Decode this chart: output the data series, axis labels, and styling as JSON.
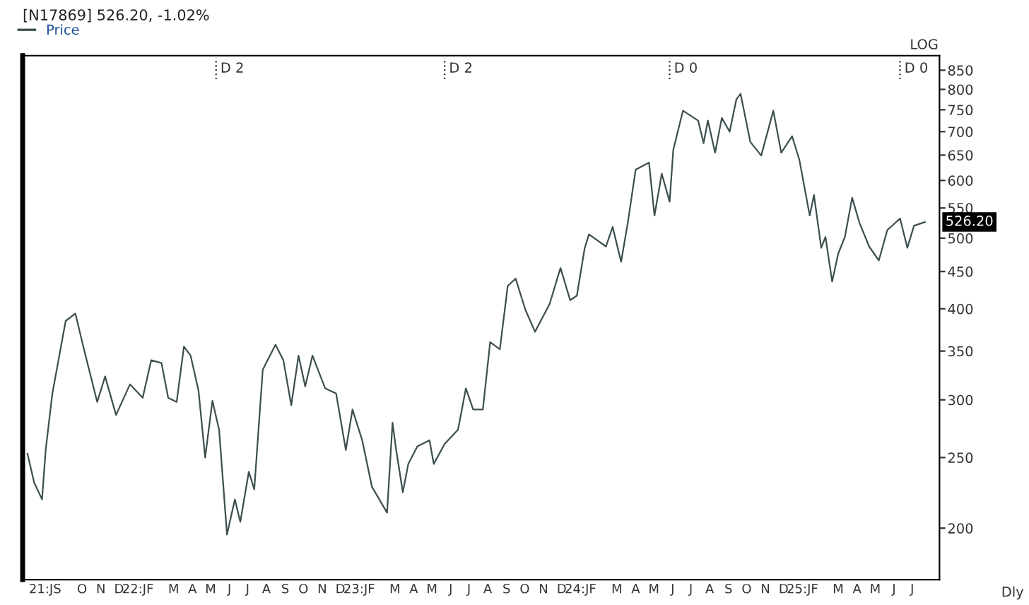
{
  "chart_data": {
    "type": "line",
    "title": "[N17869] 526.20, -1.02%",
    "log": true,
    "grid": false,
    "legend": "top left",
    "marker": "none",
    "line_style": "solid",
    "ylim": [
      170,
      890
    ],
    "yticks": [
      200,
      250,
      300,
      350,
      400,
      450,
      500,
      550,
      600,
      650,
      700,
      750,
      800,
      850
    ],
    "xlim": [
      "2021-06-25",
      "2025-08-15"
    ],
    "xticks": [
      {
        "value": "2021-08-01",
        "label": "21:JS"
      },
      {
        "value": "2021-10-01",
        "label": "O"
      },
      {
        "value": "2021-11-01",
        "label": "N"
      },
      {
        "value": "2021-12-01",
        "label": "D"
      },
      {
        "value": "2022-01-01",
        "label": "22:JF"
      },
      {
        "value": "2022-03-01",
        "label": "M"
      },
      {
        "value": "2022-04-01",
        "label": "A"
      },
      {
        "value": "2022-05-01",
        "label": "M"
      },
      {
        "value": "2022-06-01",
        "label": "J"
      },
      {
        "value": "2022-07-01",
        "label": "J"
      },
      {
        "value": "2022-08-01",
        "label": "A"
      },
      {
        "value": "2022-09-01",
        "label": "S"
      },
      {
        "value": "2022-10-01",
        "label": "O"
      },
      {
        "value": "2022-11-01",
        "label": "N"
      },
      {
        "value": "2022-12-01",
        "label": "D"
      },
      {
        "value": "2023-01-01",
        "label": "23:JF"
      },
      {
        "value": "2023-03-01",
        "label": "M"
      },
      {
        "value": "2023-04-01",
        "label": "A"
      },
      {
        "value": "2023-05-01",
        "label": "M"
      },
      {
        "value": "2023-06-01",
        "label": "J"
      },
      {
        "value": "2023-07-01",
        "label": "J"
      },
      {
        "value": "2023-08-01",
        "label": "A"
      },
      {
        "value": "2023-09-01",
        "label": "S"
      },
      {
        "value": "2023-10-01",
        "label": "O"
      },
      {
        "value": "2023-11-01",
        "label": "N"
      },
      {
        "value": "2023-12-01",
        "label": "D"
      },
      {
        "value": "2024-01-01",
        "label": "24:JF"
      },
      {
        "value": "2024-03-01",
        "label": "M"
      },
      {
        "value": "2024-04-01",
        "label": "A"
      },
      {
        "value": "2024-05-01",
        "label": "M"
      },
      {
        "value": "2024-06-01",
        "label": "J"
      },
      {
        "value": "2024-07-01",
        "label": "J"
      },
      {
        "value": "2024-08-01",
        "label": "A"
      },
      {
        "value": "2024-09-01",
        "label": "S"
      },
      {
        "value": "2024-10-01",
        "label": "O"
      },
      {
        "value": "2024-11-01",
        "label": "N"
      },
      {
        "value": "2024-12-01",
        "label": "D"
      },
      {
        "value": "2025-01-01",
        "label": "25:JF"
      },
      {
        "value": "2025-03-01",
        "label": "M"
      },
      {
        "value": "2025-04-01",
        "label": "A"
      },
      {
        "value": "2025-05-01",
        "label": "M"
      },
      {
        "value": "2025-06-01",
        "label": "J"
      },
      {
        "value": "2025-07-01",
        "label": "J"
      }
    ],
    "ref_lines": [
      {
        "axis": "x",
        "value": "2022-05-10",
        "label": "D 2",
        "line_style": "dotted"
      },
      {
        "axis": "x",
        "value": "2023-05-22",
        "label": "D 2",
        "line_style": "dotted"
      },
      {
        "axis": "x",
        "value": "2024-05-27",
        "label": "D 0",
        "line_style": "dotted"
      },
      {
        "axis": "x",
        "value": "2025-06-11",
        "label": "D 0",
        "line_style": "dotted"
      }
    ],
    "annotations": [
      {
        "text": "526.20",
        "y": 526.2
      },
      "LOG",
      "Dly"
    ],
    "series": [
      {
        "name": "Price",
        "color": "#3d4f4f",
        "x": [
          "2021-07-03",
          "2021-07-14",
          "2021-07-27",
          "2021-08-02",
          "2021-08-13",
          "2021-09-04",
          "2021-09-20",
          "2021-10-03",
          "2021-10-26",
          "2021-11-08",
          "2021-11-26",
          "2021-12-19",
          "2022-01-09",
          "2022-01-23",
          "2022-02-09",
          "2022-02-20",
          "2022-03-06",
          "2022-03-18",
          "2022-03-29",
          "2022-04-11",
          "2022-04-22",
          "2022-05-04",
          "2022-05-15",
          "2022-05-28",
          "2022-06-10",
          "2022-06-19",
          "2022-07-03",
          "2022-07-12",
          "2022-07-26",
          "2022-08-16",
          "2022-08-29",
          "2022-09-11",
          "2022-09-23",
          "2022-10-04",
          "2022-10-16",
          "2022-11-06",
          "2022-11-24",
          "2022-12-10",
          "2022-12-21",
          "2023-01-06",
          "2023-01-22",
          "2023-02-16",
          "2023-02-25",
          "2023-03-03",
          "2023-03-14",
          "2023-03-23",
          "2023-04-07",
          "2023-04-27",
          "2023-05-04",
          "2023-05-22",
          "2023-06-13",
          "2023-06-26",
          "2023-07-08",
          "2023-07-24",
          "2023-08-05",
          "2023-08-21",
          "2023-09-03",
          "2023-09-16",
          "2023-10-02",
          "2023-10-18",
          "2023-11-11",
          "2023-11-29",
          "2023-12-15",
          "2023-12-26",
          "2024-01-08",
          "2024-01-15",
          "2024-02-12",
          "2024-02-23",
          "2024-03-08",
          "2024-03-19",
          "2024-04-01",
          "2024-04-23",
          "2024-05-02",
          "2024-05-14",
          "2024-05-27",
          "2024-06-02",
          "2024-06-18",
          "2024-07-13",
          "2024-07-22",
          "2024-07-29",
          "2024-08-10",
          "2024-08-21",
          "2024-09-03",
          "2024-09-14",
          "2024-09-21",
          "2024-10-07",
          "2024-10-25",
          "2024-11-14",
          "2024-11-27",
          "2024-12-15",
          "2024-12-27",
          "2025-01-13",
          "2025-01-20",
          "2025-02-01",
          "2025-02-08",
          "2025-02-19",
          "2025-03-01",
          "2025-03-12",
          "2025-03-24",
          "2025-04-05",
          "2025-04-21",
          "2025-05-07",
          "2025-05-21",
          "2025-06-11",
          "2025-06-23",
          "2025-07-04",
          "2025-07-22"
        ],
        "values": [
          253,
          231,
          219,
          256,
          306,
          385,
          394,
          355,
          298,
          323,
          286,
          315,
          302,
          340,
          337,
          302,
          298,
          355,
          345,
          309,
          250,
          299,
          273,
          196,
          219,
          204,
          239,
          226,
          330,
          357,
          340,
          295,
          345,
          313,
          345,
          311,
          306,
          256,
          291,
          264,
          228,
          210,
          279,
          256,
          224,
          245,
          259,
          264,
          245,
          261,
          273,
          311,
          291,
          291,
          360,
          352,
          430,
          440,
          399,
          372,
          406,
          455,
          411,
          417,
          485,
          506,
          487,
          518,
          464,
          525,
          621,
          635,
          537,
          613,
          561,
          661,
          748,
          725,
          675,
          725,
          655,
          731,
          700,
          775,
          789,
          678,
          649,
          748,
          655,
          690,
          640,
          537,
          573,
          485,
          502,
          436,
          476,
          502,
          568,
          525,
          487,
          466,
          513,
          532,
          485,
          520,
          526
        ]
      }
    ]
  }
}
